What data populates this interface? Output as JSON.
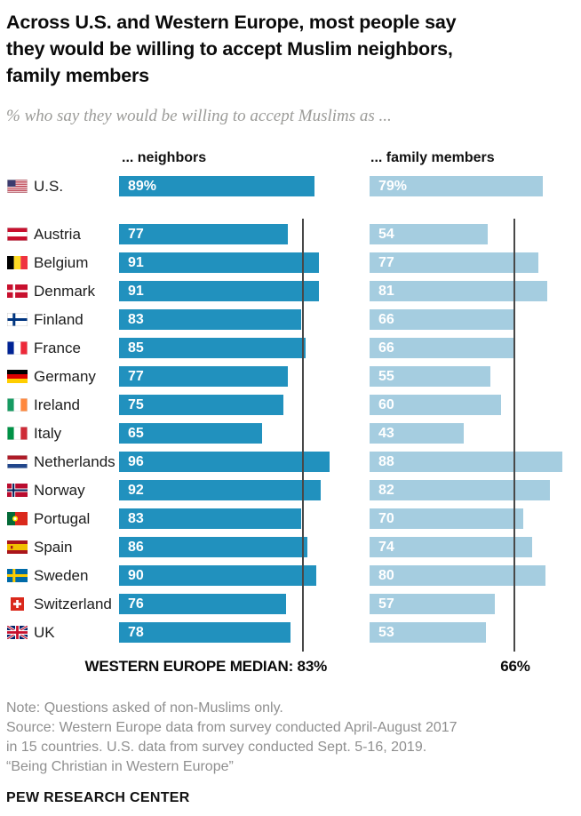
{
  "header": {
    "title": "Across U.S. and Western Europe, most people say they would be willing to accept Muslim neighbors, family members",
    "title_lines": [
      "Across U.S. and Western Europe, most people say",
      "they would be willing to accept Muslim neighbors,",
      "family members"
    ],
    "subtitle": "% who say they would be willing to accept Muslims as ..."
  },
  "chart_data": {
    "type": "bar",
    "orientation": "horizontal",
    "unit": "%",
    "xlim": [
      0,
      100
    ],
    "grid": false,
    "legend_position": "column-headers",
    "series": [
      {
        "name": "... neighbors",
        "color": "#2191BE"
      },
      {
        "name": "... family members",
        "color": "#A5CDE0"
      }
    ],
    "rows": [
      {
        "country": "U.S.",
        "flag": "us",
        "neighbors": 89,
        "family": 79,
        "neighbors_label": "89%",
        "family_label": "79%"
      },
      {
        "country": "Austria",
        "flag": "austria",
        "neighbors": 77,
        "family": 54,
        "neighbors_label": "77",
        "family_label": "54"
      },
      {
        "country": "Belgium",
        "flag": "belgium",
        "neighbors": 91,
        "family": 77,
        "neighbors_label": "91",
        "family_label": "77"
      },
      {
        "country": "Denmark",
        "flag": "denmark",
        "neighbors": 91,
        "family": 81,
        "neighbors_label": "91",
        "family_label": "81"
      },
      {
        "country": "Finland",
        "flag": "finland",
        "neighbors": 83,
        "family": 66,
        "neighbors_label": "83",
        "family_label": "66"
      },
      {
        "country": "France",
        "flag": "france",
        "neighbors": 85,
        "family": 66,
        "neighbors_label": "85",
        "family_label": "66"
      },
      {
        "country": "Germany",
        "flag": "germany",
        "neighbors": 77,
        "family": 55,
        "neighbors_label": "77",
        "family_label": "55"
      },
      {
        "country": "Ireland",
        "flag": "ireland",
        "neighbors": 75,
        "family": 60,
        "neighbors_label": "75",
        "family_label": "60"
      },
      {
        "country": "Italy",
        "flag": "italy",
        "neighbors": 65,
        "family": 43,
        "neighbors_label": "65",
        "family_label": "43"
      },
      {
        "country": "Netherlands",
        "flag": "netherlands",
        "neighbors": 96,
        "family": 88,
        "neighbors_label": "96",
        "family_label": "88"
      },
      {
        "country": "Norway",
        "flag": "norway",
        "neighbors": 92,
        "family": 82,
        "neighbors_label": "92",
        "family_label": "82"
      },
      {
        "country": "Portugal",
        "flag": "portugal",
        "neighbors": 83,
        "family": 70,
        "neighbors_label": "83",
        "family_label": "70"
      },
      {
        "country": "Spain",
        "flag": "spain",
        "neighbors": 86,
        "family": 74,
        "neighbors_label": "86",
        "family_label": "74"
      },
      {
        "country": "Sweden",
        "flag": "sweden",
        "neighbors": 90,
        "family": 80,
        "neighbors_label": "90",
        "family_label": "80"
      },
      {
        "country": "Switzerland",
        "flag": "switzerland",
        "neighbors": 76,
        "family": 57,
        "neighbors_label": "76",
        "family_label": "57"
      },
      {
        "country": "UK",
        "flag": "uk",
        "neighbors": 78,
        "family": 53,
        "neighbors_label": "78",
        "family_label": "53"
      }
    ],
    "median": {
      "neighbors": 83,
      "family": 66,
      "neighbors_label": "WESTERN EUROPE MEDIAN: 83%",
      "family_label": "66%"
    }
  },
  "footer": {
    "note_lines": [
      "Note: Questions asked of non-Muslims only.",
      "Source: Western Europe data from survey conducted April-August 2017",
      "in 15 countries. U.S. data from survey conducted Sept. 5-16, 2019.",
      "“Being Christian in Western Europe”"
    ],
    "brand": "PEW RESEARCH CENTER"
  }
}
